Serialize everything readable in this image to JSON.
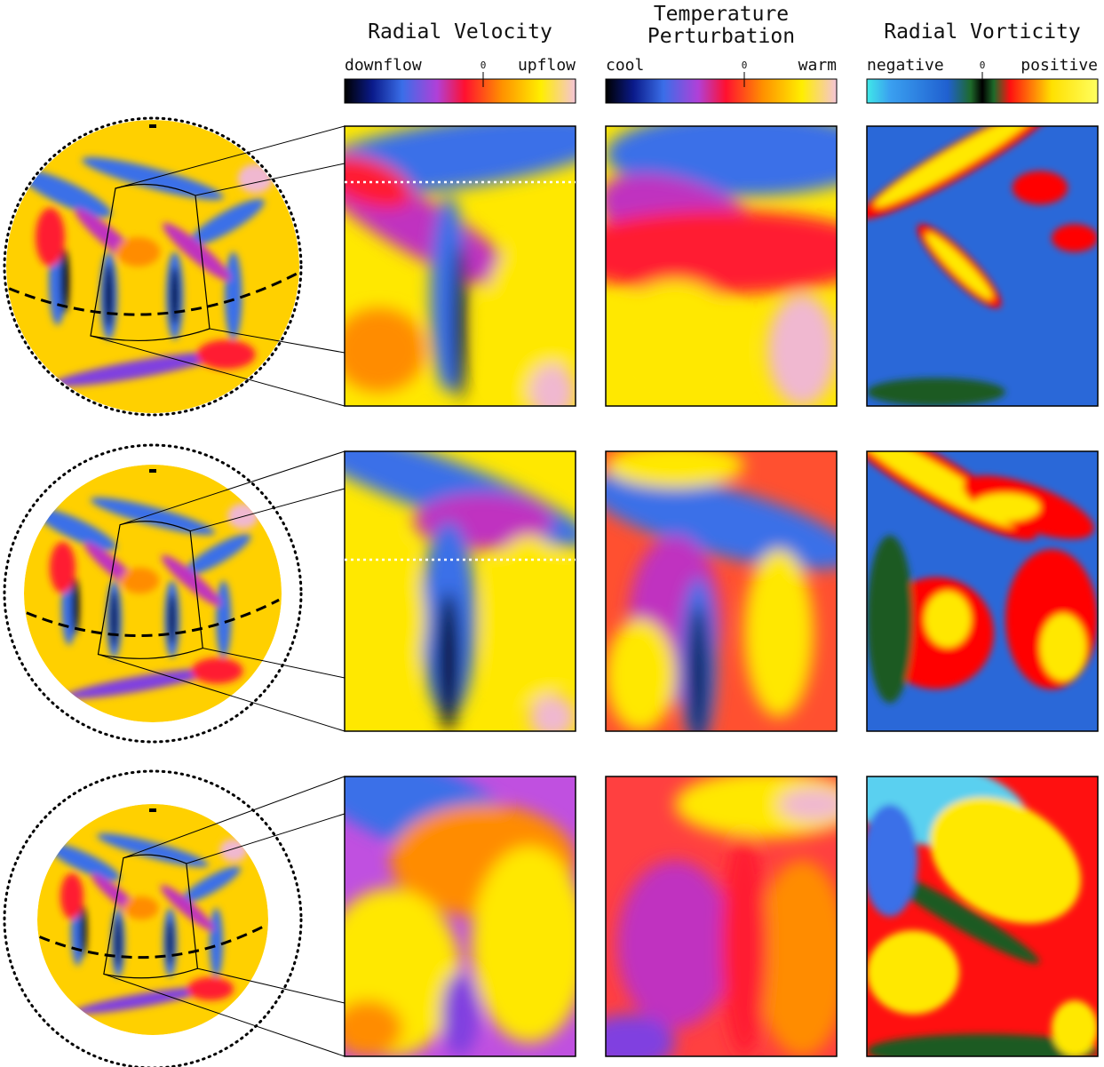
{
  "columns": [
    {
      "title": [
        "Radial Velocity"
      ],
      "low": "downflow",
      "zero": "0",
      "high": "upflow"
    },
    {
      "title": [
        "Temperature",
        "Perturbation"
      ],
      "low": "cool",
      "zero": "0",
      "high": "warm"
    },
    {
      "title": [
        "Radial Vorticity"
      ],
      "low": "negative",
      "zero": "0",
      "high": "positive"
    }
  ]
}
